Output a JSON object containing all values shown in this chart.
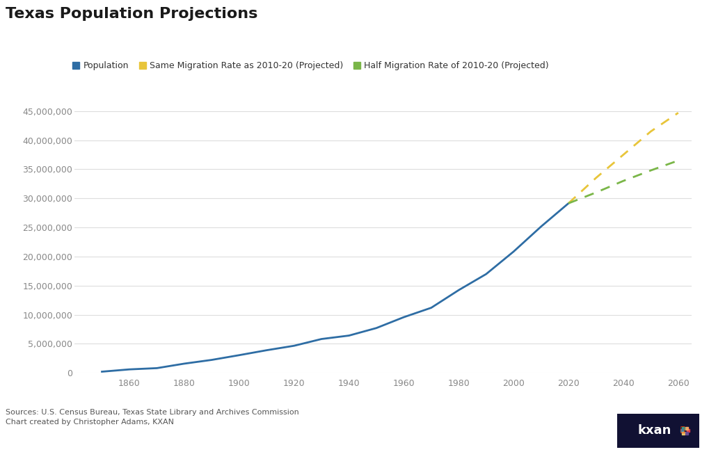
{
  "title": "Texas Population Projections",
  "legend_labels": [
    "Population",
    "Same Migration Rate as 2010-20 (Projected)",
    "Half Migration Rate of 2010-20 (Projected)"
  ],
  "legend_colors": [
    "#2e6da4",
    "#e8c53a",
    "#7ab648"
  ],
  "source_text": "Sources: U.S. Census Bureau, Texas State Library and Archives Commission\nChart created by Christopher Adams, KXAN",
  "population": {
    "years": [
      1850,
      1860,
      1870,
      1880,
      1890,
      1900,
      1910,
      1920,
      1930,
      1940,
      1950,
      1960,
      1970,
      1980,
      1990,
      2000,
      2010,
      2020
    ],
    "values": [
      212592,
      604215,
      818579,
      1591749,
      2235527,
      3048710,
      3896542,
      4663228,
      5824715,
      6414824,
      7711194,
      9579677,
      11196730,
      14229191,
      16986510,
      20851820,
      25145561,
      29145505
    ]
  },
  "same_migration": {
    "years": [
      2020,
      2030,
      2040,
      2050,
      2060
    ],
    "values": [
      29145505,
      33500000,
      37500000,
      41500000,
      44700000
    ]
  },
  "half_migration": {
    "years": [
      2020,
      2030,
      2040,
      2050,
      2060
    ],
    "values": [
      29145505,
      31000000,
      33000000,
      34800000,
      36500000
    ]
  },
  "ylim": [
    0,
    47000000
  ],
  "xlim": [
    1840,
    2065
  ],
  "yticks": [
    0,
    5000000,
    10000000,
    15000000,
    20000000,
    25000000,
    30000000,
    35000000,
    40000000,
    45000000
  ],
  "xticks": [
    1860,
    1880,
    1900,
    1920,
    1940,
    1960,
    1980,
    2000,
    2020,
    2040,
    2060
  ],
  "background_color": "#ffffff",
  "grid_color": "#dddddd",
  "line_color": "#2e6da4",
  "proj1_color": "#e8c53a",
  "proj2_color": "#7ab648"
}
